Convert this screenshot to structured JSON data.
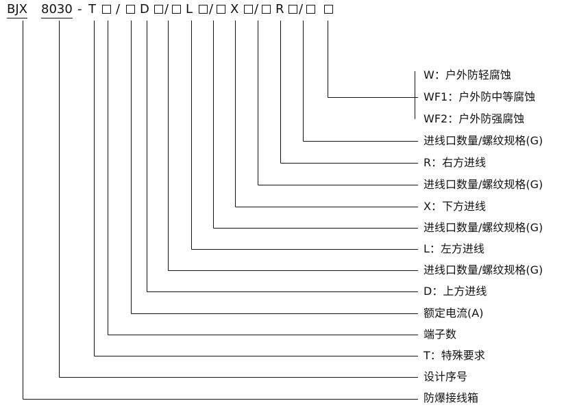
{
  "code": {
    "prefix": "BJX",
    "series": "8030",
    "dash": "-",
    "slash": "/",
    "T": "T",
    "D": "D",
    "L": "L",
    "X": "X",
    "R": "R"
  },
  "descriptions": [
    {
      "id": "W",
      "text": "W：户外防轻腐蚀"
    },
    {
      "id": "WF1",
      "text": "WF1：户外防中等腐蚀"
    },
    {
      "id": "WF2",
      "text": "WF2：户外防强腐蚀"
    },
    {
      "id": "R-spec",
      "text": "进线口数量/螺纹规格(G)"
    },
    {
      "id": "R",
      "text": "R：右方进线"
    },
    {
      "id": "X-spec",
      "text": "进线口数量/螺纹规格(G)"
    },
    {
      "id": "X",
      "text": "X：下方进线"
    },
    {
      "id": "L-spec",
      "text": "进线口数量/螺纹规格(G)"
    },
    {
      "id": "L",
      "text": "L：左方进线"
    },
    {
      "id": "D-spec",
      "text": "进线口数量/螺纹规格(G)"
    },
    {
      "id": "D",
      "text": "D：上方进线"
    },
    {
      "id": "current",
      "text": "额定电流(A)"
    },
    {
      "id": "terminals",
      "text": "端子数"
    },
    {
      "id": "T",
      "text": "T：特殊要求"
    },
    {
      "id": "design",
      "text": "设计序号"
    },
    {
      "id": "box",
      "text": "防爆接线箱"
    }
  ]
}
